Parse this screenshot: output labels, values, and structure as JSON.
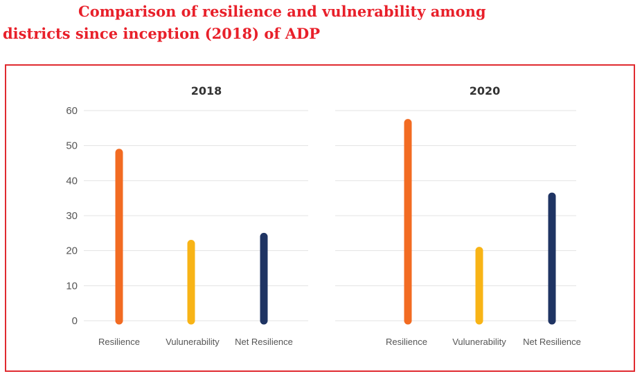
{
  "title_lines": [
    "Comparison of resilience and vulnerability among",
    "districts since inception (2018) of ADP"
  ],
  "colors": {
    "title": "#e8202a",
    "frame": "#e02a2f",
    "resilience": "#f26b22",
    "vulnerability": "#f8b416",
    "net_resilience": "#1f3463"
  },
  "chart_data": [
    {
      "type": "bar",
      "title": "2018",
      "categories": [
        "Resilience",
        "Vulunerability",
        "Net Resilience"
      ],
      "values": [
        49,
        23,
        25
      ],
      "ylim": [
        0,
        60
      ],
      "yticks": [
        0,
        10,
        20,
        30,
        40,
        50,
        60
      ],
      "grid": true,
      "legend": "none"
    },
    {
      "type": "bar",
      "title": "2020",
      "categories": [
        "Resilience",
        "Vulunerability",
        "Net Resilience"
      ],
      "values": [
        57.5,
        21,
        36.5
      ],
      "ylim": [
        0,
        60
      ],
      "grid": true,
      "legend": "none"
    }
  ]
}
